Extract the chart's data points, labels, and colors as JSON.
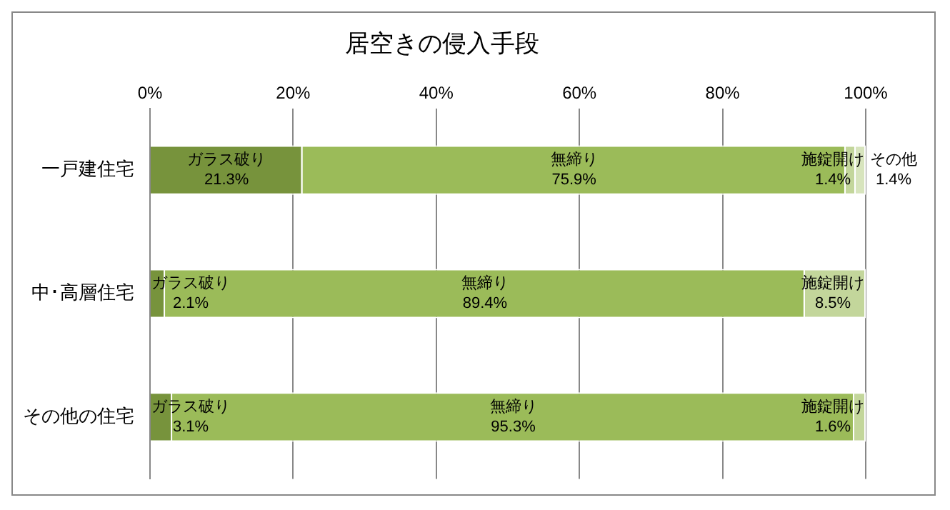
{
  "chart_data": {
    "type": "bar",
    "orientation": "horizontal",
    "stacked": true,
    "title": "居空きの侵入手段",
    "categories": [
      "一戸建住宅",
      "中･高層住宅",
      "その他の住宅"
    ],
    "series": [
      {
        "name": "ガラス破り",
        "color": "#77933c",
        "values": [
          21.3,
          2.1,
          3.1
        ],
        "value_labels": [
          "21.3%",
          "2.1%",
          "3.1%"
        ]
      },
      {
        "name": "無締り",
        "color": "#9bbb59",
        "values": [
          75.9,
          89.4,
          95.3
        ],
        "value_labels": [
          "75.9%",
          "89.4%",
          "95.3%"
        ]
      },
      {
        "name": "施錠開け",
        "color": "#c3d69b",
        "values": [
          1.4,
          8.5,
          1.6
        ],
        "value_labels": [
          "1.4%",
          "8.5%",
          "1.6%"
        ]
      },
      {
        "name": "その他",
        "color": "#d7e4bd",
        "values": [
          1.4,
          null,
          null
        ],
        "value_labels": [
          "1.4%",
          null,
          null
        ]
      }
    ],
    "xlim": [
      0,
      100
    ],
    "xticks": [
      {
        "value": 0,
        "label": "0%"
      },
      {
        "value": 20,
        "label": "20%"
      },
      {
        "value": 40,
        "label": "40%"
      },
      {
        "value": 60,
        "label": "60%"
      },
      {
        "value": 80,
        "label": "80%"
      },
      {
        "value": 100,
        "label": "100%"
      }
    ],
    "grid": "x",
    "legend": false
  }
}
